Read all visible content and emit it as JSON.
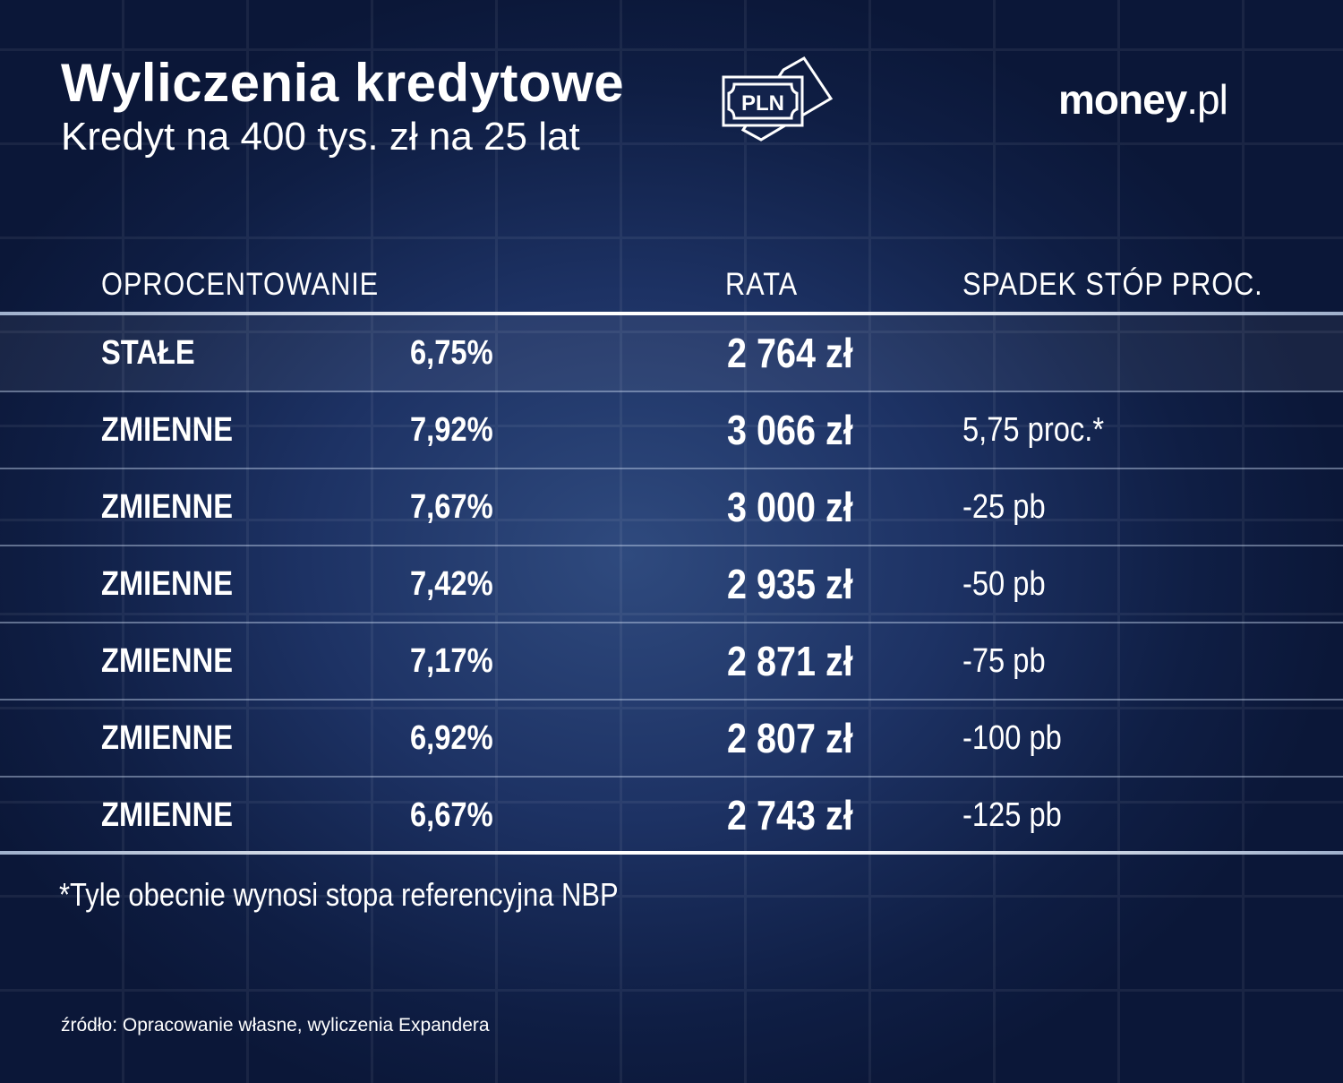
{
  "header": {
    "title": "Wyliczenia kredytowe",
    "subtitle": "Kredyt na 400 tys. zł na 25 lat",
    "icon": "pln-banknote-icon",
    "icon_text": "PLN",
    "logo_main": "money",
    "logo_suffix": ".pl"
  },
  "table": {
    "columns": [
      "OPROCENTOWANIE",
      "RATA",
      "SPADEK STÓP PROC."
    ],
    "rows": [
      {
        "type": "STAŁE",
        "rate": "6,75%",
        "installment": "2 764 zł",
        "drop": ""
      },
      {
        "type": "ZMIENNE",
        "rate": "7,92%",
        "installment": "3 066 zł",
        "drop": "5,75 proc.*"
      },
      {
        "type": "ZMIENNE",
        "rate": "7,67%",
        "installment": "3 000 zł",
        "drop": "-25 pb"
      },
      {
        "type": "ZMIENNE",
        "rate": "7,42%",
        "installment": "2 935 zł",
        "drop": "-50 pb"
      },
      {
        "type": "ZMIENNE",
        "rate": "7,17%",
        "installment": "2 871 zł",
        "drop": "-75 pb"
      },
      {
        "type": "ZMIENNE",
        "rate": "6,92%",
        "installment": "2 807 zł",
        "drop": "-100 pb"
      },
      {
        "type": "ZMIENNE",
        "rate": "6,67%",
        "installment": "2 743 zł",
        "drop": "-125 pb"
      }
    ]
  },
  "footnote": "*Tyle obecnie wynosi stopa referencyjna NBP",
  "source": "źródło: Opracowanie własne, wyliczenia Expandera",
  "colors": {
    "background": "#1d3264",
    "text": "#ffffff"
  }
}
